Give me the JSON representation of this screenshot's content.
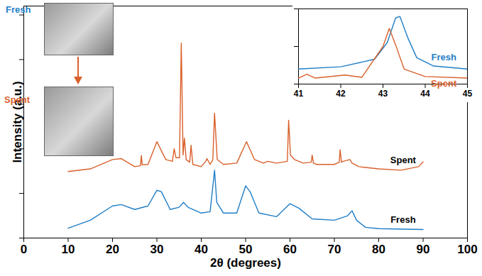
{
  "chart_data": [
    {
      "type": "line",
      "xlabel": "2θ (degrees)",
      "ylabel": "Intensity (a.u.)",
      "xlim": [
        0,
        100
      ],
      "xticks": [
        0,
        10,
        20,
        30,
        40,
        50,
        60,
        70,
        80,
        90,
        100
      ],
      "ylim": [
        0,
        5.2
      ],
      "yticks": [
        0,
        1,
        2,
        3,
        4,
        5
      ],
      "tick_labels": "x",
      "image_labels": [
        "Fresh",
        "Spent"
      ],
      "series": [
        {
          "name": "Spent",
          "color": "#d9602b",
          "x": [
            10,
            15,
            20,
            22,
            25,
            26.3,
            26.5,
            26.7,
            28,
            30,
            32,
            33.5,
            33.9,
            34.3,
            35.1,
            35.5,
            35.9,
            36.2,
            36.6,
            37.4,
            37.7,
            38.1,
            40,
            41,
            41.3,
            42,
            42.6,
            43,
            43.6,
            45,
            48,
            50.2,
            52,
            54,
            55,
            57,
            59.4,
            59.7,
            60.1,
            61,
            63,
            64.8,
            65,
            65.3,
            66,
            70,
            71.1,
            71.3,
            71.6,
            72,
            73.5,
            74,
            75.5,
            80,
            85,
            89,
            90
          ],
          "values": [
            1.49,
            1.55,
            1.76,
            1.78,
            1.6,
            1.62,
            1.85,
            1.64,
            1.65,
            2.16,
            1.76,
            1.72,
            2.0,
            1.8,
            1.8,
            4.37,
            1.86,
            2.24,
            1.76,
            1.7,
            2.08,
            1.65,
            1.6,
            1.72,
            1.78,
            1.65,
            1.75,
            2.8,
            1.76,
            1.65,
            1.68,
            2.16,
            1.76,
            1.68,
            1.72,
            1.68,
            1.72,
            2.64,
            1.86,
            1.76,
            1.68,
            1.7,
            1.86,
            1.68,
            1.65,
            1.65,
            1.7,
            1.98,
            1.7,
            1.72,
            1.76,
            1.68,
            1.6,
            1.55,
            1.52,
            1.6,
            1.71
          ]
        },
        {
          "name": "Fresh",
          "color": "#1f7ec6",
          "x": [
            10,
            15,
            20,
            22,
            25,
            28,
            30,
            31,
            33,
            35,
            36,
            37,
            40,
            42,
            43,
            43.5,
            45,
            48,
            50,
            51,
            53,
            57,
            60,
            62,
            65,
            70,
            73,
            74,
            75,
            77,
            80,
            90
          ],
          "values": [
            0.22,
            0.4,
            0.72,
            0.75,
            0.64,
            0.72,
            1.07,
            1.04,
            0.64,
            0.69,
            0.8,
            0.69,
            0.56,
            0.59,
            1.52,
            0.8,
            0.56,
            0.56,
            1.17,
            1.04,
            0.56,
            0.48,
            0.77,
            0.67,
            0.43,
            0.4,
            0.5,
            0.61,
            0.4,
            0.24,
            0.21,
            0.19
          ]
        }
      ]
    },
    {
      "type": "line",
      "xlim": [
        41,
        45
      ],
      "xticks": [
        41,
        42,
        43,
        44,
        45
      ],
      "ylim": [
        0,
        1
      ],
      "tick_labels": "x",
      "series": [
        {
          "name": "Fresh",
          "color": "#1f7ec6",
          "x": [
            41,
            42,
            42.8,
            43.1,
            43.3,
            43.4,
            43.6,
            43.8,
            44.2,
            45
          ],
          "values": [
            0.2,
            0.23,
            0.33,
            0.55,
            0.88,
            0.9,
            0.6,
            0.35,
            0.24,
            0.2
          ]
        },
        {
          "name": "Spent",
          "color": "#d9602b",
          "x": [
            41,
            41.2,
            41.4,
            42.1,
            42.5,
            43.0,
            43.15,
            43.3,
            43.5,
            44,
            45
          ],
          "values": [
            0.08,
            0.13,
            0.08,
            0.12,
            0.09,
            0.5,
            0.74,
            0.52,
            0.2,
            0.1,
            0.08
          ]
        }
      ]
    }
  ]
}
